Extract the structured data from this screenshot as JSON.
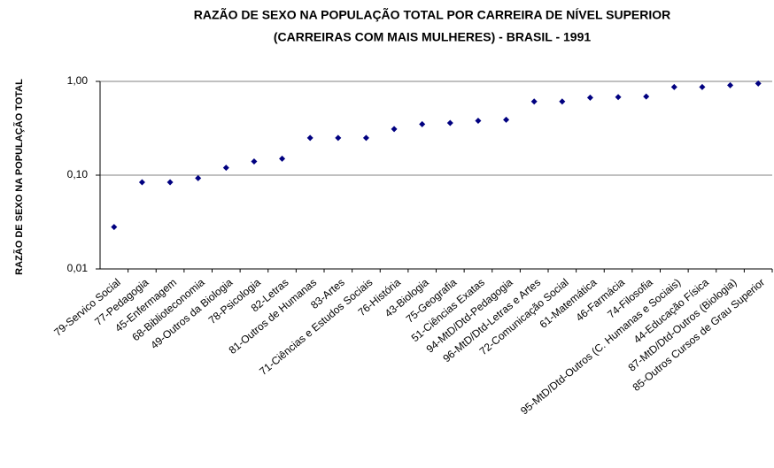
{
  "chart_data": {
    "type": "scatter",
    "title": [
      "RAZÃO DE SEXO NA POPULAÇÃO TOTAL POR CARREIRA DE NÍVEL SUPERIOR",
      "(CARREIRAS COM MAIS MULHERES) - BRASIL - 1991"
    ],
    "y_label": "RAZÃO DE SEXO NA POPULAÇÃO TOTAL",
    "categories": [
      "79-Servico Social",
      "77-Pedagogia",
      "45-Enfermagem",
      "68-Biblioteconomia",
      "49-Outros da Biologia",
      "78-Psicologia",
      "82-Letras",
      "81-Outros de Humanas",
      "83-Artes",
      "71-Ciências e Estudos Sociais",
      "76-História",
      "43-Biologia",
      "75-Geografia",
      "51-Ciências Exatas",
      "94-MtD/Dtd-Pedagogia",
      "96-MtD/Dtd-Letras e Artes",
      "72-Comunicação Social",
      "61-Matemática",
      "46-Farmácia",
      "74-Filosofia",
      "95-MtD/Dtd-Outros (C. Humanas e Sociais)",
      "44-Educação Física",
      "87-MtD/Dtd-Outros (Biologia)",
      "85-Outros Cursos de Grau Superior"
    ],
    "values": [
      0.028,
      0.084,
      0.084,
      0.093,
      0.12,
      0.14,
      0.15,
      0.25,
      0.25,
      0.25,
      0.31,
      0.35,
      0.36,
      0.38,
      0.39,
      0.61,
      0.61,
      0.67,
      0.68,
      0.69,
      0.87,
      0.87,
      0.91,
      0.95
    ],
    "color": "#000080",
    "yscale": "log",
    "ylim": [
      0.01,
      1
    ],
    "yticks": [
      {
        "value": 0.01,
        "label": "0,01"
      },
      {
        "value": 0.1,
        "label": "0,10"
      },
      {
        "value": 1,
        "label": "1,00"
      }
    ],
    "grid": true
  }
}
